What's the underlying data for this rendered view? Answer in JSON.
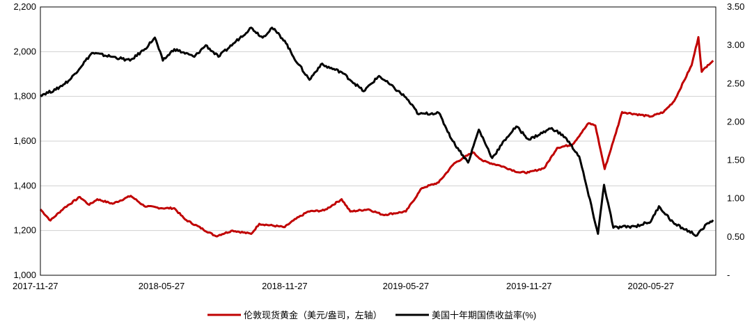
{
  "chart_data": {
    "type": "line",
    "title": "",
    "xlabel": "",
    "ylabel": "",
    "x_ticks": [
      "2017-11-27",
      "2018-05-27",
      "2018-11-27",
      "2019-05-27",
      "2019-11-27",
      "2020-05-27"
    ],
    "y_left": {
      "ylim": [
        1000,
        2200
      ],
      "ticks": [
        1000,
        1200,
        1400,
        1600,
        1800,
        2000,
        2200
      ],
      "tick_labels": [
        "1,000",
        "1,200",
        "1,400",
        "1,600",
        "1,800",
        "2,000",
        "2,200"
      ]
    },
    "y_right": {
      "ylim": [
        0,
        3.5
      ],
      "ticks": [
        0,
        0.5,
        1.0,
        1.5,
        2.0,
        2.5,
        3.0,
        3.5
      ],
      "tick_labels": [
        "-",
        "0.50",
        "1.00",
        "1.50",
        "2.00",
        "2.50",
        "3.00",
        "3.50"
      ]
    },
    "grid": "horizontal",
    "legend_position": "bottom",
    "series": [
      {
        "name": "伦敦现货黄金（美元/盎司，左轴）",
        "axis": "left",
        "color": "#c00000",
        "points": [
          [
            "2017-11-27",
            1295
          ],
          [
            "2017-12-12",
            1245
          ],
          [
            "2018-01-01",
            1300
          ],
          [
            "2018-01-25",
            1350
          ],
          [
            "2018-02-08",
            1315
          ],
          [
            "2018-02-20",
            1340
          ],
          [
            "2018-03-15",
            1320
          ],
          [
            "2018-04-11",
            1355
          ],
          [
            "2018-05-01",
            1310
          ],
          [
            "2018-05-27",
            1300
          ],
          [
            "2018-06-15",
            1300
          ],
          [
            "2018-07-01",
            1250
          ],
          [
            "2018-08-16",
            1175
          ],
          [
            "2018-09-10",
            1200
          ],
          [
            "2018-10-08",
            1185
          ],
          [
            "2018-10-20",
            1230
          ],
          [
            "2018-11-27",
            1215
          ],
          [
            "2018-12-10",
            1245
          ],
          [
            "2019-01-01",
            1285
          ],
          [
            "2019-01-25",
            1290
          ],
          [
            "2019-02-20",
            1340
          ],
          [
            "2019-03-05",
            1285
          ],
          [
            "2019-04-01",
            1295
          ],
          [
            "2019-04-23",
            1270
          ],
          [
            "2019-05-27",
            1285
          ],
          [
            "2019-06-20",
            1390
          ],
          [
            "2019-07-15",
            1415
          ],
          [
            "2019-08-07",
            1500
          ],
          [
            "2019-09-04",
            1550
          ],
          [
            "2019-09-20",
            1510
          ],
          [
            "2019-10-15",
            1490
          ],
          [
            "2019-11-12",
            1460
          ],
          [
            "2019-11-27",
            1460
          ],
          [
            "2019-12-20",
            1480
          ],
          [
            "2020-01-08",
            1570
          ],
          [
            "2020-01-31",
            1585
          ],
          [
            "2020-02-24",
            1680
          ],
          [
            "2020-03-05",
            1670
          ],
          [
            "2020-03-19",
            1475
          ],
          [
            "2020-04-01",
            1600
          ],
          [
            "2020-04-14",
            1730
          ],
          [
            "2020-05-27",
            1710
          ],
          [
            "2020-06-15",
            1730
          ],
          [
            "2020-07-01",
            1780
          ],
          [
            "2020-07-27",
            1940
          ],
          [
            "2020-08-06",
            2065
          ],
          [
            "2020-08-11",
            1910
          ],
          [
            "2020-08-20",
            1940
          ],
          [
            "2020-08-28",
            1960
          ]
        ]
      },
      {
        "name": "美国十年期国债收益率(%)",
        "axis": "right",
        "color": "#000000",
        "points": [
          [
            "2017-11-27",
            2.35
          ],
          [
            "2017-12-20",
            2.42
          ],
          [
            "2018-01-10",
            2.55
          ],
          [
            "2018-02-12",
            2.9
          ],
          [
            "2018-03-15",
            2.85
          ],
          [
            "2018-04-10",
            2.8
          ],
          [
            "2018-05-02",
            2.95
          ],
          [
            "2018-05-17",
            3.1
          ],
          [
            "2018-05-29",
            2.8
          ],
          [
            "2018-06-15",
            2.95
          ],
          [
            "2018-07-15",
            2.85
          ],
          [
            "2018-08-01",
            3.0
          ],
          [
            "2018-08-20",
            2.85
          ],
          [
            "2018-09-15",
            3.05
          ],
          [
            "2018-10-08",
            3.23
          ],
          [
            "2018-10-25",
            3.1
          ],
          [
            "2018-11-08",
            3.23
          ],
          [
            "2018-11-27",
            3.06
          ],
          [
            "2018-12-10",
            2.85
          ],
          [
            "2019-01-03",
            2.55
          ],
          [
            "2019-01-20",
            2.75
          ],
          [
            "2019-02-20",
            2.65
          ],
          [
            "2019-03-25",
            2.4
          ],
          [
            "2019-04-17",
            2.6
          ],
          [
            "2019-05-27",
            2.32
          ],
          [
            "2019-06-15",
            2.1
          ],
          [
            "2019-07-15",
            2.12
          ],
          [
            "2019-08-05",
            1.75
          ],
          [
            "2019-08-28",
            1.47
          ],
          [
            "2019-09-13",
            1.9
          ],
          [
            "2019-10-03",
            1.53
          ],
          [
            "2019-10-25",
            1.8
          ],
          [
            "2019-11-08",
            1.94
          ],
          [
            "2019-11-27",
            1.77
          ],
          [
            "2019-12-31",
            1.92
          ],
          [
            "2020-01-20",
            1.8
          ],
          [
            "2020-02-10",
            1.55
          ],
          [
            "2020-03-09",
            0.54
          ],
          [
            "2020-03-18",
            1.18
          ],
          [
            "2020-04-01",
            0.62
          ],
          [
            "2020-05-04",
            0.64
          ],
          [
            "2020-05-27",
            0.7
          ],
          [
            "2020-06-08",
            0.9
          ],
          [
            "2020-07-01",
            0.67
          ],
          [
            "2020-08-04",
            0.52
          ],
          [
            "2020-08-20",
            0.68
          ],
          [
            "2020-08-28",
            0.72
          ]
        ]
      }
    ]
  }
}
